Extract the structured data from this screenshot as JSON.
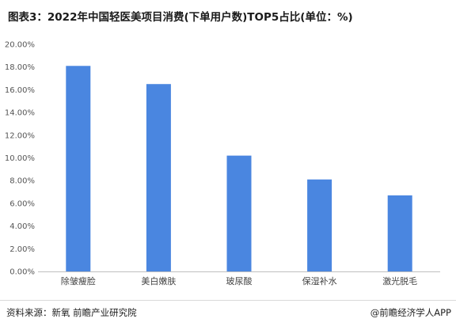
{
  "title": "图表3：2022年中国轻医美项目消费(下单用户数)TOP5占比(单位：%)",
  "footer": {
    "source": "资料来源：新氧 前瞻产业研究院",
    "brand": "@前瞻经济学人APP"
  },
  "colors": {
    "bar": "#4a86e0",
    "axis": "#bfbfbf",
    "text": "#333333"
  },
  "chart_data": {
    "type": "bar",
    "title": "图表3：2022年中国轻医美项目消费(下单用户数)TOP5占比(单位：%)",
    "categories": [
      "除皱瘦脸",
      "美白嫩肤",
      "玻尿酸",
      "保湿补水",
      "激光脱毛"
    ],
    "values": [
      18.1,
      16.5,
      10.2,
      8.1,
      6.7
    ],
    "ylim": [
      0,
      20
    ],
    "yticks": [
      0,
      2,
      4,
      6,
      8,
      10,
      12,
      14,
      16,
      18,
      20
    ],
    "ytick_labels": [
      "0.00%",
      "2.00%",
      "4.00%",
      "6.00%",
      "8.00%",
      "10.00%",
      "12.00%",
      "14.00%",
      "16.00%",
      "18.00%",
      "20.00%"
    ],
    "xlabel": "",
    "ylabel": "",
    "grid": false,
    "legend": "none"
  }
}
